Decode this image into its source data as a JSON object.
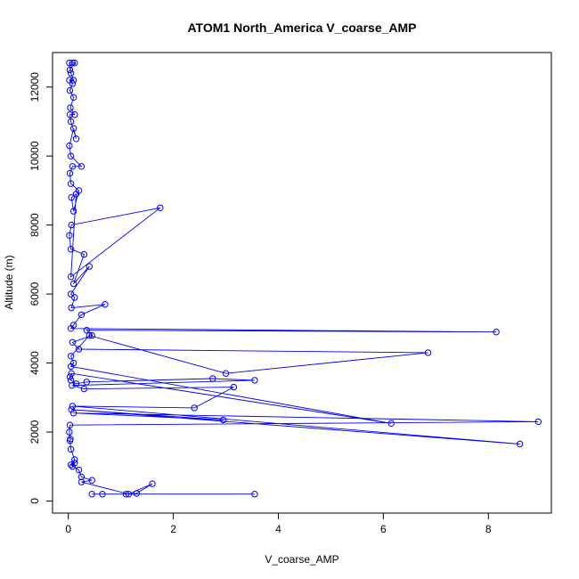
{
  "chart_data": {
    "type": "line",
    "title": "ATOM1 North_America V_coarse_AMP",
    "xlabel": "V_coarse_AMP",
    "ylabel": "Altitude (m)",
    "xlim": [
      -0.3,
      9.2
    ],
    "ylim": [
      -350,
      13000
    ],
    "xticks": [
      0,
      2,
      4,
      6,
      8
    ],
    "yticks": [
      0,
      2000,
      4000,
      6000,
      8000,
      10000,
      12000
    ],
    "grid": false,
    "legend": "none",
    "series_color": "#0000ff",
    "marker": "open-circle",
    "series": [
      {
        "x": [
          3.55,
          0.45,
          0.65,
          1.1,
          1.3,
          1.6,
          1.15,
          0.25,
          0.45,
          0.25,
          0.2,
          0.05,
          0.12,
          0.08,
          0.12,
          0.05,
          0.03,
          0.04,
          0.02,
          0.03,
          8.95,
          0.1,
          2.95,
          0.06,
          8.6,
          0.08,
          2.4,
          3.15,
          0.3,
          0.07,
          3.55,
          2.75,
          0.35,
          0.15,
          0.05,
          0.03,
          0.06,
          6.15,
          0.05,
          0.1,
          0.05,
          0.4,
          3.0,
          6.85,
          0.2,
          0.08,
          0.45,
          0.35,
          8.15,
          0.05,
          0.1,
          0.25,
          0.7,
          0.06,
          0.12,
          0.05,
          0.4,
          0.1,
          0.3,
          0.05,
          0.02,
          0.06,
          1.75,
          0.05,
          0.15,
          0.06,
          0.1,
          0.2,
          0.05,
          0.03,
          0.08,
          0.25,
          0.05,
          0.02,
          0.1,
          0.15,
          0.05,
          0.03,
          0.12,
          0.04,
          0.1,
          0.03,
          0.08,
          0.02,
          0.1,
          0.05,
          0.02,
          0.08,
          0.12,
          0.03
        ],
        "y": [
          200,
          200,
          200,
          200,
          220,
          500,
          200,
          550,
          600,
          700,
          900,
          1050,
          1100,
          1000,
          1200,
          1500,
          1750,
          1800,
          2000,
          2200,
          2300,
          2550,
          2350,
          2650,
          1650,
          2750,
          2700,
          3300,
          3250,
          3350,
          3500,
          3550,
          3450,
          3400,
          3500,
          3600,
          3700,
          2250,
          3900,
          4000,
          4200,
          4800,
          3700,
          4300,
          4400,
          4600,
          4800,
          4950,
          4900,
          5000,
          5100,
          5400,
          5700,
          5600,
          5900,
          6000,
          6800,
          6300,
          7150,
          7300,
          7700,
          8000,
          8500,
          6500,
          8900,
          8800,
          8400,
          9000,
          9200,
          9500,
          9700,
          9700,
          10000,
          10300,
          10800,
          10500,
          11000,
          11200,
          11200,
          11400,
          11700,
          11900,
          12100,
          12200,
          12200,
          12400,
          12700,
          12700,
          12700,
          12500
        ]
      }
    ]
  }
}
